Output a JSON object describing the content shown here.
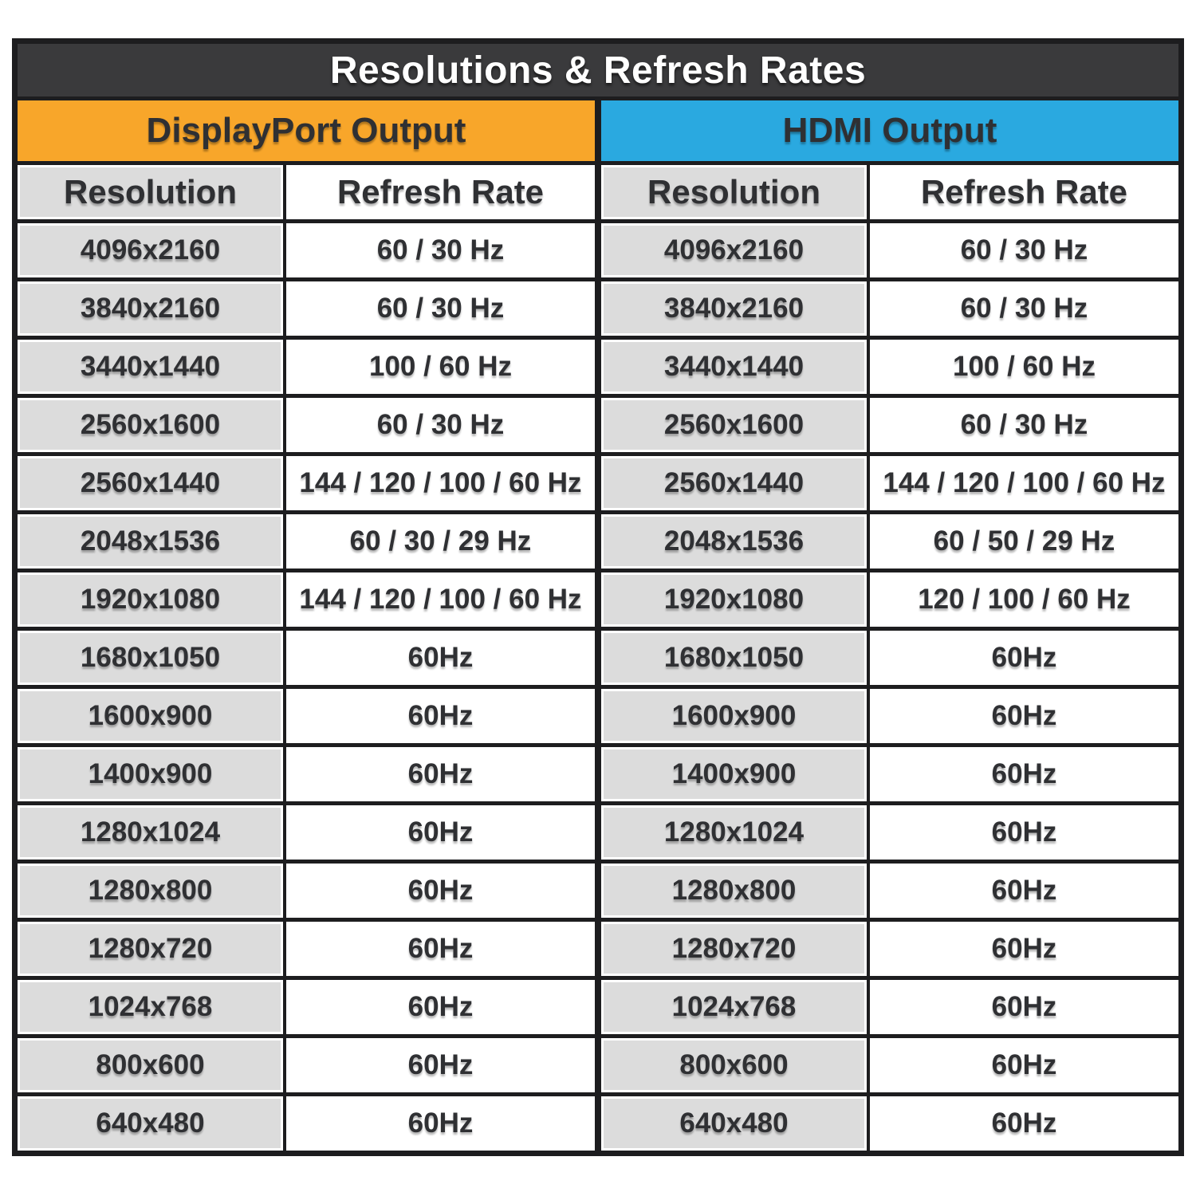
{
  "chart_data": {
    "type": "table",
    "title": "Resolutions & Refresh Rates",
    "columns": [
      "Resolution",
      "Refresh Rate"
    ],
    "sections": [
      {
        "label": "DisplayPort Output",
        "accent": "#F8A62A",
        "rows": [
          [
            "4096x2160",
            "60 / 30 Hz"
          ],
          [
            "3840x2160",
            "60 / 30 Hz"
          ],
          [
            "3440x1440",
            "100 / 60 Hz"
          ],
          [
            "2560x1600",
            "60 / 30 Hz"
          ],
          [
            "2560x1440",
            "144 / 120 / 100 / 60 Hz"
          ],
          [
            "2048x1536",
            "60 / 30 / 29 Hz"
          ],
          [
            "1920x1080",
            "144 / 120 / 100 / 60 Hz"
          ],
          [
            "1680x1050",
            "60Hz"
          ],
          [
            "1600x900",
            "60Hz"
          ],
          [
            "1400x900",
            "60Hz"
          ],
          [
            "1280x1024",
            "60Hz"
          ],
          [
            "1280x800",
            "60Hz"
          ],
          [
            "1280x720",
            "60Hz"
          ],
          [
            "1024x768",
            "60Hz"
          ],
          [
            "800x600",
            "60Hz"
          ],
          [
            "640x480",
            "60Hz"
          ]
        ]
      },
      {
        "label": "HDMI Output",
        "accent": "#2AA9E0",
        "rows": [
          [
            "4096x2160",
            "60 / 30 Hz"
          ],
          [
            "3840x2160",
            "60 / 30 Hz"
          ],
          [
            "3440x1440",
            "100 / 60 Hz"
          ],
          [
            "2560x1600",
            "60 / 30 Hz"
          ],
          [
            "2560x1440",
            "144 / 120 / 100 / 60 Hz"
          ],
          [
            "2048x1536",
            "60 / 50 / 29 Hz"
          ],
          [
            "1920x1080",
            "120 / 100 / 60 Hz"
          ],
          [
            "1680x1050",
            "60Hz"
          ],
          [
            "1600x900",
            "60Hz"
          ],
          [
            "1400x900",
            "60Hz"
          ],
          [
            "1280x1024",
            "60Hz"
          ],
          [
            "1280x800",
            "60Hz"
          ],
          [
            "1280x720",
            "60Hz"
          ],
          [
            "1024x768",
            "60Hz"
          ],
          [
            "800x600",
            "60Hz"
          ],
          [
            "640x480",
            "60Hz"
          ]
        ]
      }
    ]
  },
  "colors": {
    "title_bg": "#3A3A3C",
    "border": "#1D1D1F",
    "row_gray": "#DCDCDC",
    "text": "#2F3033"
  }
}
